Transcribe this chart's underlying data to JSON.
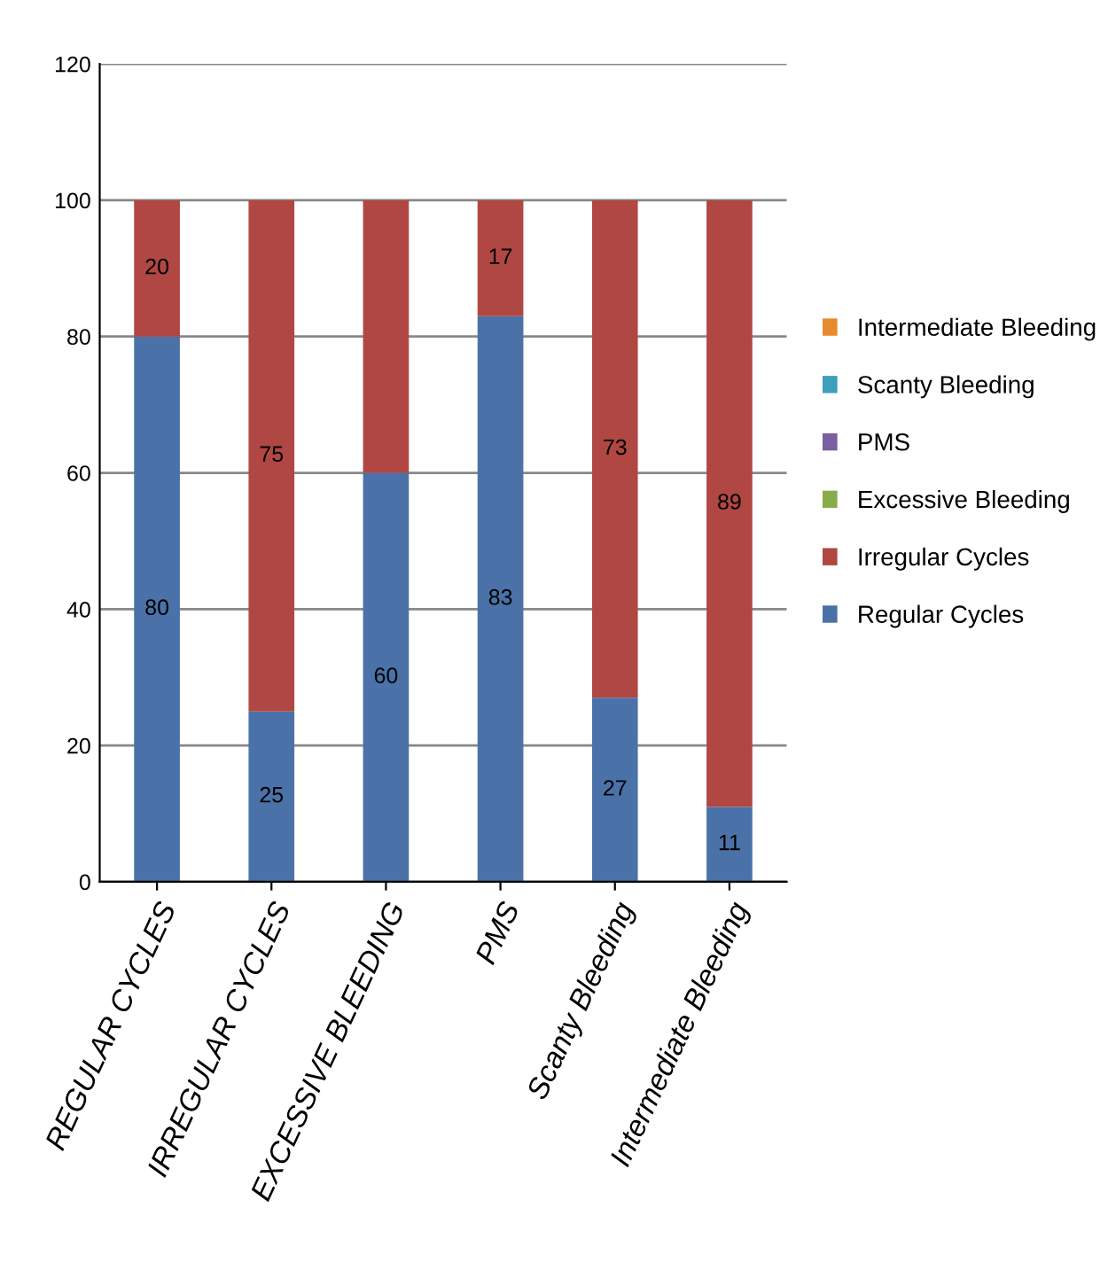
{
  "chart_data": {
    "type": "bar",
    "stacked": true,
    "categories": [
      "REGULAR CYCLES",
      "IRREGULAR CYCLES",
      "EXCESSIVE BLEEDING",
      "PMS",
      "Scanty Bleeding",
      "Intermediate Bleeding"
    ],
    "series": [
      {
        "name": "Regular Cycles",
        "color": "#4a72a8",
        "values": [
          80,
          25,
          60,
          83,
          27,
          11
        ],
        "value_labels": [
          "80",
          "25",
          "60",
          "83",
          "27",
          "11"
        ]
      },
      {
        "name": "Irregular Cycles",
        "color": "#b04743",
        "values": [
          20,
          75,
          40,
          17,
          73,
          89
        ],
        "value_labels": [
          "20",
          "75",
          null,
          "17",
          "73",
          "89"
        ]
      },
      {
        "name": "Excessive Bleeding",
        "color": "#8aab4a",
        "values": [
          null,
          null,
          null,
          null,
          null,
          null
        ]
      },
      {
        "name": "PMS",
        "color": "#7b5fa0",
        "values": [
          null,
          null,
          null,
          null,
          null,
          null
        ]
      },
      {
        "name": "Scanty Bleeding",
        "color": "#3e9fbb",
        "values": [
          null,
          null,
          null,
          null,
          null,
          null
        ]
      },
      {
        "name": "Intermediate Bleeding",
        "color": "#e8892e",
        "values": [
          null,
          null,
          null,
          null,
          null,
          null
        ]
      }
    ],
    "ylim": [
      0,
      120
    ],
    "yticks": [
      0,
      20,
      40,
      60,
      80,
      100,
      120
    ],
    "grid": "y",
    "legend": "right"
  }
}
